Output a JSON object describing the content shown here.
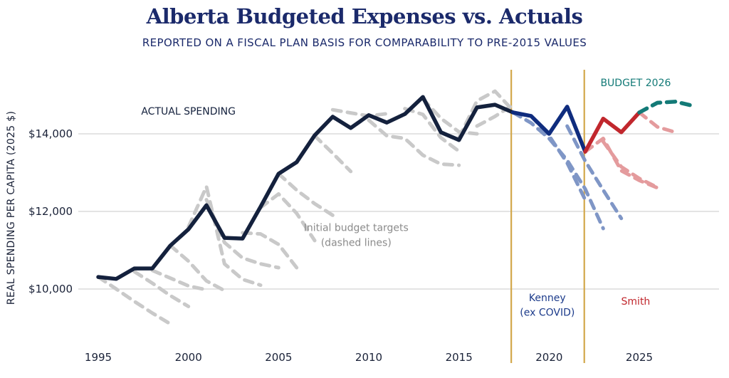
{
  "chart_data": {
    "type": "line",
    "title": "Alberta Budgeted Expenses vs. Actuals",
    "subtitle": "REPORTED ON A FISCAL PLAN BASIS FOR COMPARABILITY TO PRE-2015 VALUES",
    "xlabel": "",
    "ylabel": "REAL SPENDING PER CAPITA (2025 $)",
    "xlim": [
      1994.5,
      2029
    ],
    "ylim": [
      9100,
      15600
    ],
    "x_ticks": [
      1995,
      2000,
      2005,
      2010,
      2015,
      2020,
      2025
    ],
    "x_tick_labels": [
      "1995",
      "2000",
      "2005",
      "2010",
      "2015",
      "2020",
      "2025"
    ],
    "y_ticks": [
      10000,
      12000,
      14000
    ],
    "y_tick_labels": [
      "$10,000",
      "$12,000",
      "$14,000"
    ],
    "grid": "horizontal",
    "colors": {
      "actual": "#14213d",
      "kenney": "#0f2c7e",
      "smith": "#c1272d",
      "budget2026": "#137a77",
      "gray_budget": "#c9c9c9",
      "kenney_budget": "#7f96c6",
      "smith_budget": "#e49b9d",
      "era_line": "#d3a84b",
      "text": "#1b2a6b"
    },
    "vlines": [
      {
        "x": 2017.9,
        "label": "Kenney start"
      },
      {
        "x": 2021.95,
        "label": "Smith start"
      }
    ],
    "series": [
      {
        "name": "Actual spending (pre-Kenney)",
        "style": "actual",
        "x": [
          1995,
          1996,
          1997,
          1998,
          1999,
          2000,
          2001,
          2002,
          2003,
          2004,
          2005,
          2006,
          2007,
          2008,
          2009,
          2010,
          2011,
          2012,
          2013,
          2014,
          2015,
          2016,
          2017,
          2018
        ],
        "values": [
          10310,
          10260,
          10530,
          10530,
          11120,
          11540,
          12160,
          11320,
          11300,
          12120,
          12970,
          13270,
          13960,
          14440,
          14150,
          14480,
          14290,
          14510,
          14950,
          14040,
          13840,
          14680,
          14750,
          14550
        ]
      },
      {
        "name": "Actual spending (Kenney)",
        "style": "kenney",
        "x": [
          2018,
          2019,
          2020,
          2021,
          2022
        ],
        "values": [
          14550,
          14460,
          14000,
          14700,
          13540
        ]
      },
      {
        "name": "Actual spending (Smith)",
        "style": "smith",
        "x": [
          2022,
          2023,
          2024,
          2025
        ],
        "values": [
          13540,
          14390,
          14040,
          14550
        ]
      },
      {
        "name": "Budget 2026",
        "style": "budget2026",
        "x": [
          2025,
          2026,
          2027,
          2028
        ],
        "values": [
          14550,
          14800,
          14830,
          14720
        ]
      },
      {
        "name": "Budget target 1995",
        "style": "gray_budget",
        "x": [
          1995,
          1996,
          1997,
          1998,
          1999
        ],
        "values": [
          10310,
          10000,
          9680,
          9380,
          9100
        ]
      },
      {
        "name": "Budget target 1997",
        "style": "gray_budget",
        "x": [
          1997,
          1998,
          1999,
          2000
        ],
        "values": [
          10450,
          10150,
          9830,
          9550
        ]
      },
      {
        "name": "Budget target 1998",
        "style": "gray_budget",
        "x": [
          1998,
          1999,
          2000,
          2001
        ],
        "values": [
          10480,
          10280,
          10080,
          9980
        ]
      },
      {
        "name": "Budget target 1999",
        "style": "gray_budget",
        "x": [
          1999,
          2000,
          2001,
          2002
        ],
        "values": [
          11120,
          10720,
          10210,
          9960
        ]
      },
      {
        "name": "Budget target 2000",
        "style": "gray_budget",
        "x": [
          2000,
          2001,
          2002,
          2003,
          2004
        ],
        "values": [
          11600,
          12640,
          10650,
          10250,
          10100
        ]
      },
      {
        "name": "Budget target 2001",
        "style": "gray_budget",
        "x": [
          2001,
          2002,
          2003,
          2004,
          2005
        ],
        "values": [
          12300,
          11200,
          10800,
          10650,
          10550
        ]
      },
      {
        "name": "Budget target 2003",
        "style": "gray_budget",
        "x": [
          2003,
          2004,
          2005,
          2006
        ],
        "values": [
          11450,
          11420,
          11150,
          10550
        ]
      },
      {
        "name": "Budget target 2004",
        "style": "gray_budget",
        "x": [
          2004,
          2005,
          2006,
          2007
        ],
        "values": [
          12100,
          12450,
          11950,
          11250
        ]
      },
      {
        "name": "Budget target 2005",
        "style": "gray_budget",
        "x": [
          2005,
          2006,
          2007,
          2008
        ],
        "values": [
          12970,
          12550,
          12200,
          11900
        ]
      },
      {
        "name": "Budget target 2007",
        "style": "gray_budget",
        "x": [
          2007,
          2008,
          2009
        ],
        "values": [
          13950,
          13500,
          13030
        ]
      },
      {
        "name": "Budget target 2008",
        "style": "gray_budget",
        "x": [
          2008,
          2009,
          2010,
          2011
        ],
        "values": [
          14620,
          14540,
          14460,
          14520
        ]
      },
      {
        "name": "Budget target 2010",
        "style": "gray_budget",
        "x": [
          2010,
          2011,
          2012,
          2013,
          2014,
          2015
        ],
        "values": [
          14350,
          13950,
          13880,
          13450,
          13220,
          13190
        ]
      },
      {
        "name": "Budget target 2012",
        "style": "gray_budget",
        "x": [
          2012,
          2013,
          2014,
          2015
        ],
        "values": [
          14650,
          14500,
          13900,
          13550
        ]
      },
      {
        "name": "Budget target 2013",
        "style": "gray_budget",
        "x": [
          2013,
          2014,
          2015,
          2016
        ],
        "values": [
          14900,
          14400,
          14050,
          14000
        ]
      },
      {
        "name": "Budget target 2015",
        "style": "gray_budget",
        "x": [
          2015,
          2016,
          2017,
          2018
        ],
        "values": [
          13900,
          14850,
          15100,
          14600
        ]
      },
      {
        "name": "Budget target 2016",
        "style": "gray_budget",
        "x": [
          2016,
          2017,
          2018
        ],
        "values": [
          14200,
          14450,
          14750
        ]
      },
      {
        "name": "Budget target 2019",
        "style": "kenney_budget",
        "x": [
          2018,
          2019,
          2020,
          2021,
          2022,
          2023
        ],
        "values": [
          14550,
          14280,
          13880,
          13320,
          12580,
          11560
        ]
      },
      {
        "name": "Budget target 2020",
        "style": "kenney_budget",
        "x": [
          2019,
          2020,
          2021,
          2022
        ],
        "values": [
          14460,
          13950,
          13250,
          12300
        ]
      },
      {
        "name": "Budget target 2022",
        "style": "kenney_budget",
        "x": [
          2021,
          2022,
          2023,
          2024
        ],
        "values": [
          14200,
          13300,
          12550,
          11820
        ]
      },
      {
        "name": "Budget target 2023",
        "style": "smith_budget",
        "x": [
          2022,
          2023,
          2024,
          2025,
          2026
        ],
        "values": [
          13540,
          13880,
          13050,
          12800,
          12610
        ]
      },
      {
        "name": "Budget target 2024",
        "style": "smith_budget",
        "x": [
          2023,
          2024,
          2025,
          2026
        ],
        "values": [
          13800,
          13150,
          12850,
          12620
        ]
      },
      {
        "name": "Budget target 2025",
        "style": "smith_budget",
        "x": [
          2025,
          2026,
          2027
        ],
        "values": [
          14550,
          14180,
          14040
        ]
      }
    ],
    "annotations": [
      {
        "text": "ACTUAL SPENDING",
        "x": 2000,
        "y": 14500,
        "color": "#14213d"
      },
      {
        "text": "BUDGET 2026",
        "x": 2024.8,
        "y": 15230,
        "color": "#137a77"
      },
      {
        "text": "Initial budget targets",
        "x": 2009.3,
        "y": 11500,
        "color": "#8b8b8b"
      },
      {
        "text": "(dashed lines)",
        "x": 2009.3,
        "y": 11110,
        "color": "#8b8b8b"
      },
      {
        "text": "Kenney",
        "x": 2019.9,
        "y": 9690,
        "color": "#1b3a8a"
      },
      {
        "text": "(ex COVID)",
        "x": 2019.9,
        "y": 9310,
        "color": "#1b3a8a"
      },
      {
        "text": "Smith",
        "x": 2024.8,
        "y": 9600,
        "color": "#c1272d"
      }
    ]
  }
}
